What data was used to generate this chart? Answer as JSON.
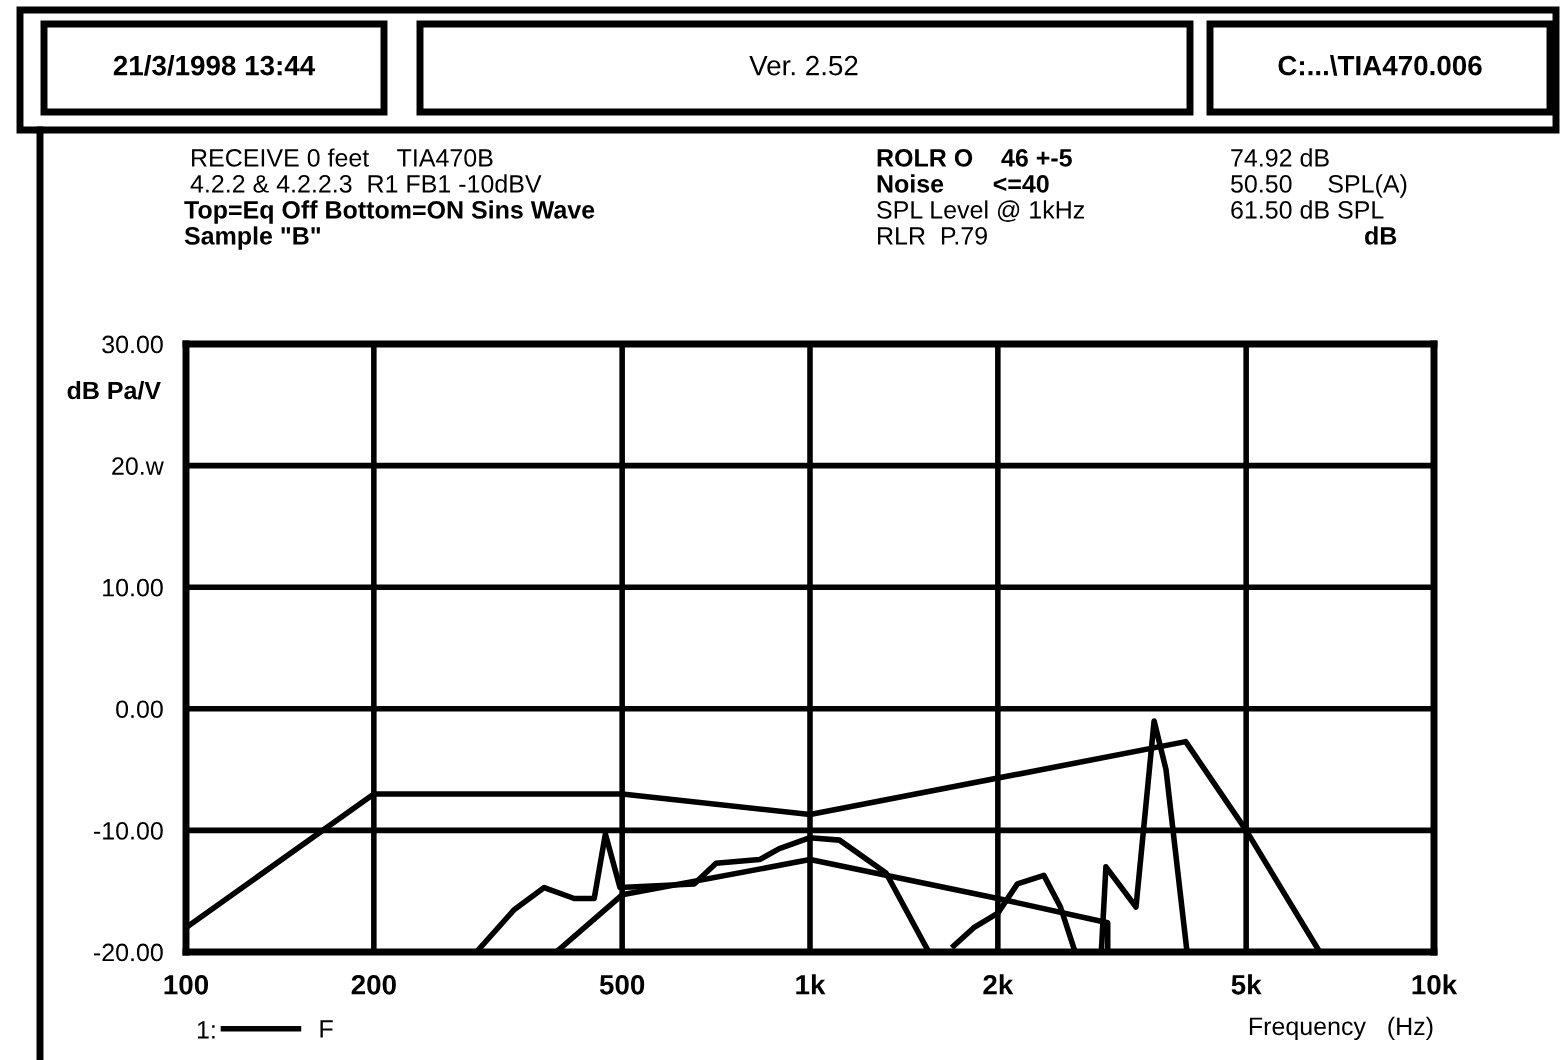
{
  "chart_data": {
    "type": "line",
    "title": "21/3/1998 13:44",
    "subtitle": "Ver. 2.52",
    "annotations": [
      "C:...\\TIA470.006",
      "RECEIVE 0 feet    TIA470B",
      "4.2.2 & 4.2.2.3  R1 FB1 -10dBV",
      "Top=Eq Off Bottom=ON Sins Wave",
      "Sample \"B\"",
      "ROLR O    46 +-5",
      "Noise       <=40",
      "SPL Level @ 1kHz",
      "RLR  P.79",
      "74.92 dB",
      "50.50     SPL(A)",
      "61.50 dB SPL",
      "dB",
      "1:"
    ],
    "ylabel": "dB Pa/V",
    "xlabel": "Frequency   (Hz)",
    "log": "x",
    "xlim": [
      100,
      10000
    ],
    "xticks": [
      100,
      200,
      500,
      {
        "value": 1000,
        "label": "1k"
      },
      {
        "value": 2000,
        "label": "2k"
      },
      {
        "value": 5000,
        "label": "5k"
      },
      {
        "value": 10000,
        "label": "10k"
      }
    ],
    "ylim": [
      -20,
      30
    ],
    "yticks": [
      {
        "value": 30,
        "label": "30.00"
      },
      {
        "value": 20,
        "label": "20.w"
      },
      {
        "value": 10,
        "label": "10.00"
      },
      {
        "value": 0,
        "label": "0.00"
      },
      {
        "value": -10,
        "label": "-10.00"
      },
      {
        "value": -20,
        "label": "-20.00"
      }
    ],
    "grid": true,
    "legend": "bottom left",
    "marker": "none",
    "line_style": "solid",
    "series": [
      {
        "color": "#000000",
        "x": [
          100,
          200,
          500,
          1000,
          4000,
          5000,
          6560
        ],
        "values": [
          -18,
          -7,
          -7,
          -8.7,
          -2.7,
          -10,
          -20
        ]
      },
      {
        "color": "#000000",
        "x": [
          392,
          500,
          1000,
          2000,
          3000,
          3000
        ],
        "values": [
          -20,
          -15.3,
          -12.4,
          -15.6,
          -17.6,
          -20
        ]
      },
      {
        "name": "F",
        "color": "#000000",
        "x": [
          292,
          336,
          375,
          419,
          451,
          470,
          496,
          652,
          707,
          830,
          893,
          1000,
          1115,
          1324,
          1550,
          1600,
          1700,
          1830,
          2000,
          2150,
          2370,
          2520,
          2660,
          2800,
          2930,
          2980,
          3330,
          3560,
          3720,
          4020
        ],
        "values": [
          -20,
          -16.5,
          -14.7,
          -15.6,
          -15.6,
          -10.3,
          -14.7,
          -14.4,
          -12.7,
          -12.4,
          -11.5,
          -10.6,
          -10.8,
          -13.5,
          -20,
          null,
          -19.5,
          -18,
          -16.8,
          -14.4,
          -13.7,
          -16.3,
          -20,
          null,
          -20,
          -13,
          -16.3,
          -1,
          -5,
          -20
        ]
      }
    ]
  }
}
